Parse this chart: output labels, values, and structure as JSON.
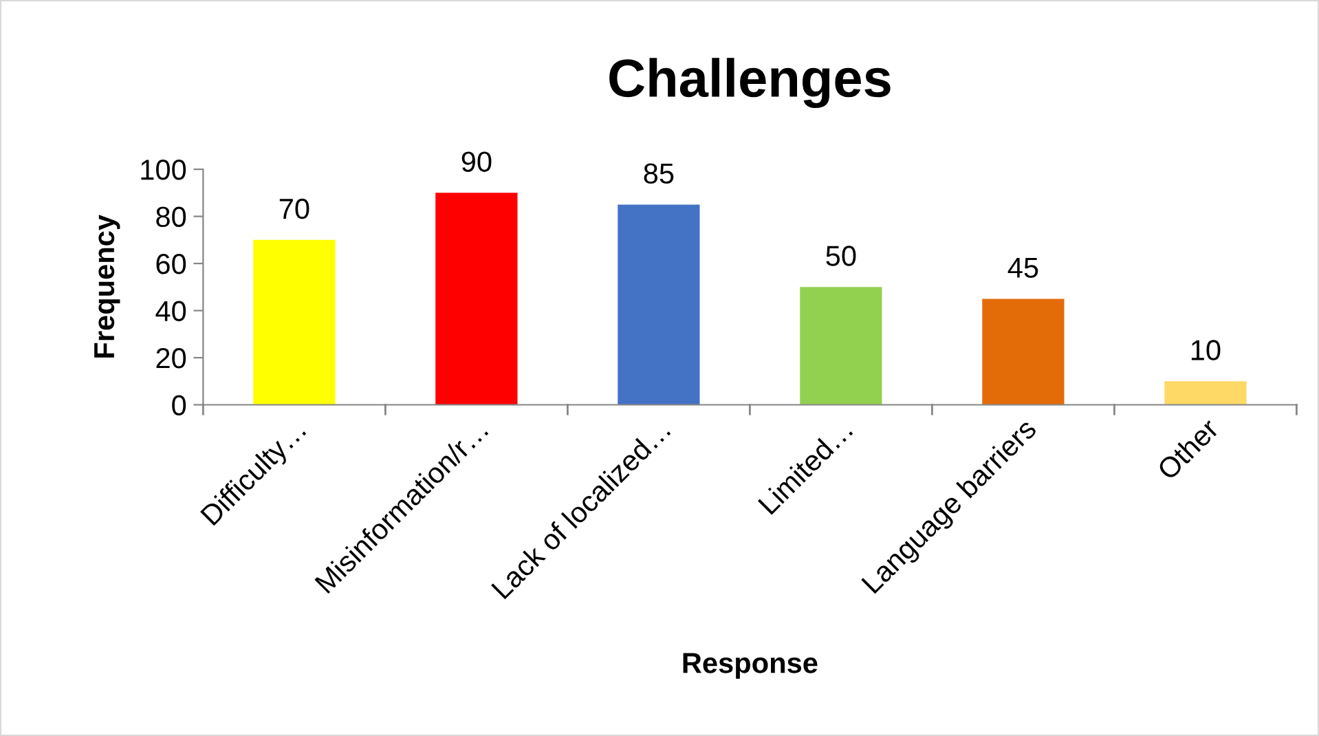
{
  "chart_data": {
    "type": "bar",
    "title": "Challenges",
    "xlabel": "Response",
    "ylabel": "Frequency",
    "categories": [
      "Difficulty…",
      "Misinformation/r…",
      "Lack of localized…",
      "Limited…",
      "Language barriers",
      "Other"
    ],
    "values": [
      70,
      90,
      85,
      50,
      45,
      10
    ],
    "colors": [
      "#ffff00",
      "#ff0000",
      "#4472c4",
      "#92d050",
      "#e36c09",
      "#ffd966"
    ],
    "ylim": [
      0,
      100
    ],
    "yticks": [
      0,
      20,
      40,
      60,
      80,
      100
    ],
    "grid": false,
    "legend": false,
    "data_labels": true
  }
}
